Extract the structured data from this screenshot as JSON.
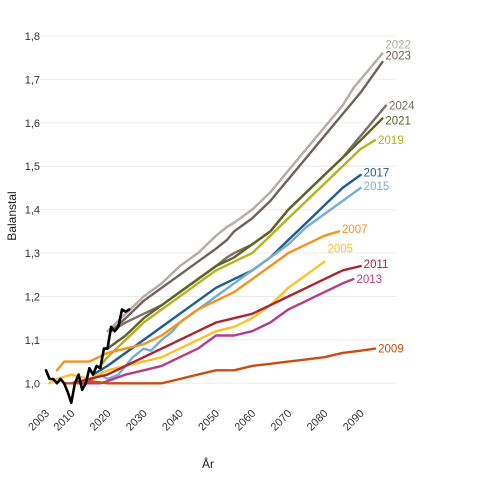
{
  "chart_data": {
    "type": "line",
    "xlabel": "År",
    "ylabel": "Balanstal",
    "xlim": [
      2003,
      2097
    ],
    "ylim": [
      0.95,
      1.8
    ],
    "x_ticks": [
      2003,
      2010,
      2020,
      2030,
      2040,
      2050,
      2060,
      2070,
      2080,
      2090
    ],
    "x_tick_labels": [
      "2003",
      "2010",
      "2020",
      "2030",
      "2040",
      "2050",
      "2060",
      "2070",
      "2080",
      "2090"
    ],
    "y_ticks": [
      1.0,
      1.1,
      1.2,
      1.3,
      1.4,
      1.5,
      1.6,
      1.7,
      1.8
    ],
    "y_tick_labels": [
      "1,0",
      "1,1",
      "1,2",
      "1,3",
      "1,4",
      "1,5",
      "1,6",
      "1,7",
      "1,8"
    ],
    "grid": "horizontal",
    "legend": "direct labels at line ends",
    "series": [
      {
        "name": "Historical",
        "label": "",
        "color": "#000000",
        "width": 2.6,
        "x": [
          2003,
          2004,
          2005,
          2006,
          2007,
          2008,
          2009,
          2010,
          2011,
          2012,
          2013,
          2014,
          2015,
          2016,
          2017,
          2018,
          2019,
          2020,
          2021,
          2022,
          2023,
          2024,
          2025,
          2026
        ],
        "y": [
          1.03,
          1.01,
          1.01,
          1.0,
          1.01,
          1.0,
          0.98,
          0.955,
          1.0,
          1.02,
          0.985,
          1.0,
          1.035,
          1.02,
          1.04,
          1.035,
          1.08,
          1.08,
          1.13,
          1.12,
          1.13,
          1.17,
          1.165,
          1.17
        ]
      },
      {
        "name": "2022",
        "label": "2022",
        "color": "#b4ada6",
        "width": 2.4,
        "x": [
          2020,
          2025,
          2030,
          2035,
          2040,
          2045,
          2050,
          2053,
          2055,
          2060,
          2065,
          2068,
          2070,
          2075,
          2080,
          2085,
          2088,
          2090,
          2096
        ],
        "y": [
          1.12,
          1.16,
          1.2,
          1.23,
          1.27,
          1.3,
          1.34,
          1.36,
          1.37,
          1.4,
          1.44,
          1.47,
          1.49,
          1.54,
          1.59,
          1.64,
          1.68,
          1.7,
          1.76
        ]
      },
      {
        "name": "2023",
        "label": "2023",
        "color": "#6e625b",
        "width": 2.4,
        "x": [
          2021,
          2025,
          2030,
          2035,
          2040,
          2045,
          2050,
          2053,
          2055,
          2060,
          2065,
          2068,
          2070,
          2075,
          2080,
          2085,
          2087,
          2090,
          2096
        ],
        "y": [
          1.12,
          1.15,
          1.19,
          1.22,
          1.25,
          1.28,
          1.31,
          1.33,
          1.35,
          1.38,
          1.42,
          1.45,
          1.47,
          1.52,
          1.57,
          1.62,
          1.64,
          1.67,
          1.74
        ]
      },
      {
        "name": "2024",
        "label": "2024",
        "color": "#7a6e68",
        "width": 2.4,
        "x": [
          2023,
          2025,
          2030,
          2035,
          2040,
          2045,
          2050,
          2053,
          2055,
          2060,
          2065,
          2067,
          2070,
          2075,
          2080,
          2085,
          2088,
          2090,
          2097
        ],
        "y": [
          1.13,
          1.14,
          1.16,
          1.18,
          1.21,
          1.24,
          1.27,
          1.29,
          1.3,
          1.32,
          1.35,
          1.37,
          1.4,
          1.44,
          1.48,
          1.52,
          1.55,
          1.57,
          1.64
        ]
      },
      {
        "name": "2021",
        "label": "2021",
        "color": "#5e6321",
        "width": 2.4,
        "x": [
          2020,
          2025,
          2030,
          2035,
          2040,
          2045,
          2050,
          2055,
          2060,
          2065,
          2068,
          2070,
          2075,
          2080,
          2085,
          2090,
          2096
        ],
        "y": [
          1.08,
          1.11,
          1.15,
          1.18,
          1.21,
          1.24,
          1.27,
          1.29,
          1.32,
          1.35,
          1.38,
          1.4,
          1.44,
          1.48,
          1.52,
          1.56,
          1.61
        ]
      },
      {
        "name": "2019",
        "label": "2019",
        "color": "#b5b120",
        "width": 2.4,
        "x": [
          2018,
          2020,
          2025,
          2030,
          2035,
          2040,
          2045,
          2050,
          2055,
          2060,
          2065,
          2070,
          2075,
          2080,
          2085,
          2090,
          2094
        ],
        "y": [
          1.04,
          1.06,
          1.1,
          1.14,
          1.17,
          1.2,
          1.23,
          1.26,
          1.28,
          1.3,
          1.34,
          1.38,
          1.42,
          1.46,
          1.5,
          1.54,
          1.56
        ]
      },
      {
        "name": "2017",
        "label": "2017",
        "color": "#1f5c8f",
        "width": 2.4,
        "x": [
          2016,
          2020,
          2025,
          2030,
          2035,
          2040,
          2045,
          2050,
          2055,
          2060,
          2065,
          2070,
          2075,
          2080,
          2085,
          2090
        ],
        "y": [
          1.02,
          1.04,
          1.07,
          1.1,
          1.13,
          1.16,
          1.19,
          1.22,
          1.24,
          1.26,
          1.29,
          1.33,
          1.37,
          1.41,
          1.45,
          1.48
        ]
      },
      {
        "name": "2015",
        "label": "2015",
        "color": "#78acd2",
        "width": 2.4,
        "x": [
          2014,
          2018,
          2020,
          2023,
          2025,
          2027,
          2030,
          2032,
          2035,
          2038,
          2040,
          2045,
          2050,
          2055,
          2060,
          2065,
          2070,
          2075,
          2080,
          2085,
          2090
        ],
        "y": [
          1.0,
          1.02,
          1.01,
          1.02,
          1.04,
          1.06,
          1.08,
          1.075,
          1.1,
          1.12,
          1.14,
          1.17,
          1.2,
          1.23,
          1.26,
          1.29,
          1.32,
          1.36,
          1.39,
          1.42,
          1.45
        ]
      },
      {
        "name": "2007",
        "label": "2007",
        "color": "#f29320",
        "width": 2.4,
        "x": [
          2006,
          2008,
          2012,
          2015,
          2020,
          2025,
          2030,
          2035,
          2040,
          2045,
          2050,
          2055,
          2060,
          2065,
          2070,
          2075,
          2080,
          2084
        ],
        "y": [
          1.03,
          1.05,
          1.05,
          1.05,
          1.07,
          1.08,
          1.09,
          1.11,
          1.14,
          1.17,
          1.19,
          1.21,
          1.24,
          1.27,
          1.3,
          1.32,
          1.34,
          1.35
        ]
      },
      {
        "name": "2005",
        "label": "2005",
        "color": "#ffc027",
        "width": 2.4,
        "x": [
          2004,
          2006,
          2010,
          2015,
          2020,
          2025,
          2030,
          2035,
          2040,
          2045,
          2050,
          2055,
          2060,
          2065,
          2070,
          2075,
          2080
        ],
        "y": [
          1.0,
          1.01,
          1.02,
          1.01,
          1.03,
          1.04,
          1.05,
          1.06,
          1.08,
          1.1,
          1.12,
          1.13,
          1.15,
          1.18,
          1.22,
          1.25,
          1.28
        ]
      },
      {
        "name": "2011",
        "label": "2011",
        "color": "#a8262e",
        "width": 2.4,
        "x": [
          2010,
          2015,
          2020,
          2025,
          2030,
          2035,
          2040,
          2045,
          2050,
          2055,
          2060,
          2065,
          2070,
          2075,
          2080,
          2085,
          2090
        ],
        "y": [
          1.0,
          1.01,
          1.02,
          1.04,
          1.06,
          1.08,
          1.1,
          1.12,
          1.14,
          1.15,
          1.16,
          1.18,
          1.2,
          1.22,
          1.24,
          1.26,
          1.27
        ]
      },
      {
        "name": "2013",
        "label": "2013",
        "color": "#b53d88",
        "width": 2.4,
        "x": [
          2012,
          2015,
          2018,
          2020,
          2025,
          2030,
          2035,
          2040,
          2045,
          2050,
          2055,
          2060,
          2065,
          2070,
          2075,
          2080,
          2085,
          2088
        ],
        "y": [
          1.0,
          1.0,
          1.0,
          1.005,
          1.02,
          1.03,
          1.04,
          1.06,
          1.08,
          1.11,
          1.11,
          1.12,
          1.14,
          1.17,
          1.19,
          1.21,
          1.23,
          1.24
        ]
      },
      {
        "name": "2009",
        "label": "2009",
        "color": "#c94d12",
        "width": 2.4,
        "x": [
          2008,
          2012,
          2015,
          2020,
          2025,
          2030,
          2035,
          2040,
          2045,
          2050,
          2055,
          2060,
          2065,
          2070,
          2075,
          2080,
          2085,
          2090,
          2094
        ],
        "y": [
          1.0,
          1.0,
          1.005,
          1.0,
          1.0,
          1.0,
          1.0,
          1.01,
          1.02,
          1.03,
          1.03,
          1.04,
          1.045,
          1.05,
          1.055,
          1.06,
          1.07,
          1.075,
          1.08
        ]
      }
    ],
    "labels_placement": [
      {
        "series": "2022",
        "x": 2096,
        "y": 1.78
      },
      {
        "series": "2023",
        "x": 2096,
        "y": 1.755
      },
      {
        "series": "2024",
        "x": 2097,
        "y": 1.64
      },
      {
        "series": "2021",
        "x": 2096,
        "y": 1.605
      },
      {
        "series": "2019",
        "x": 2094,
        "y": 1.56
      },
      {
        "series": "2017",
        "x": 2090,
        "y": 1.485
      },
      {
        "series": "2015",
        "x": 2090,
        "y": 1.455
      },
      {
        "series": "2007",
        "x": 2084,
        "y": 1.355
      },
      {
        "series": "2005",
        "x": 2080,
        "y": 1.31
      },
      {
        "series": "2011",
        "x": 2090,
        "y": 1.275
      },
      {
        "series": "2013",
        "x": 2088,
        "y": 1.24
      },
      {
        "series": "2009",
        "x": 2094,
        "y": 1.08
      }
    ]
  }
}
